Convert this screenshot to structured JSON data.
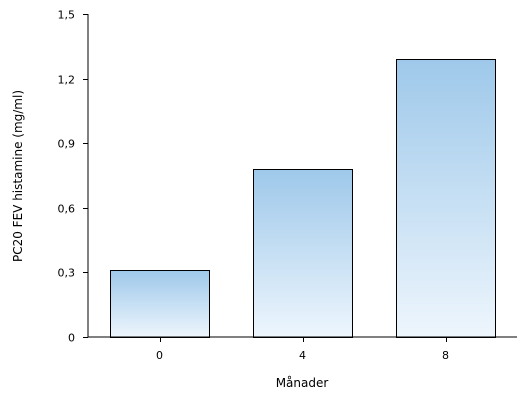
{
  "chart_data": {
    "type": "bar",
    "title": "",
    "xlabel": "Månader",
    "ylabel": "PC20 FEV histamine (mg/ml)",
    "categories": [
      "0",
      "4",
      "8"
    ],
    "values": [
      0.31,
      0.78,
      1.29
    ],
    "ylim": [
      0,
      1.5
    ],
    "yticks": [
      "0",
      "0,3",
      "0,6",
      "0,9",
      "1,2",
      "1,5"
    ],
    "ytick_values": [
      0,
      0.3,
      0.6,
      0.9,
      1.2,
      1.5
    ],
    "grid": false,
    "legend": "none",
    "colors": {
      "bar_top": "#9ec8ea",
      "bar_bottom": "#eef6fd",
      "stroke": "#000000"
    }
  }
}
